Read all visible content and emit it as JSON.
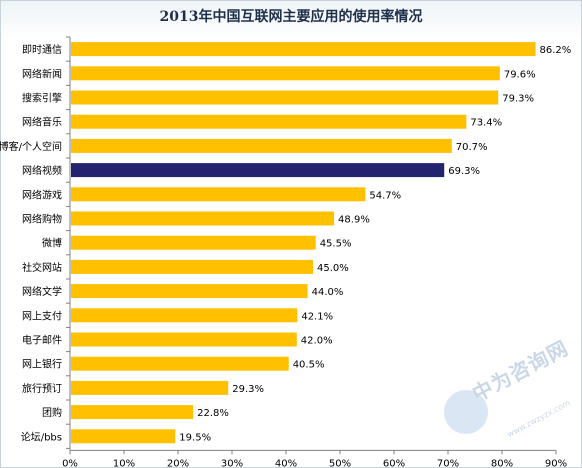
{
  "chart_data": {
    "type": "bar",
    "orientation": "horizontal",
    "title": "2013年中国互联网主要应用的使用率情况",
    "categories": [
      "即时通信",
      "网络新闻",
      "搜索引擎",
      "网络音乐",
      "博客/个人空间",
      "网络视频",
      "网络游戏",
      "网络购物",
      "微博",
      "社交网站",
      "网络文学",
      "网上支付",
      "电子邮件",
      "网上银行",
      "旅行预订",
      "团购",
      "论坛/bbs"
    ],
    "values": [
      86.2,
      79.6,
      79.3,
      73.4,
      70.7,
      69.3,
      54.7,
      48.9,
      45.5,
      45.0,
      44.0,
      42.1,
      42.0,
      40.5,
      29.3,
      22.8,
      19.5
    ],
    "value_labels": [
      "86.2%",
      "79.6%",
      "79.3%",
      "73.4%",
      "70.7%",
      "69.3%",
      "54.7%",
      "48.9%",
      "45.5%",
      "45.0%",
      "44.0%",
      "42.1%",
      "42.0%",
      "40.5%",
      "29.3%",
      "22.8%",
      "19.5%"
    ],
    "highlight_index": 5,
    "xlim": [
      0,
      90
    ],
    "x_ticks": [
      0,
      10,
      20,
      30,
      40,
      50,
      60,
      70,
      80,
      90
    ],
    "x_tick_labels": [
      "0%",
      "10%",
      "20%",
      "30%",
      "40%",
      "50%",
      "60%",
      "70%",
      "80%",
      "90%"
    ],
    "colors": {
      "bar": "#ffc000",
      "highlight": "#23236e"
    },
    "grid": false,
    "legend": "none"
  },
  "watermark": {
    "text_cn": "中为咨询网",
    "text_en": "www.zwzyzx.com",
    "logo_letters": "ZWZYZX"
  }
}
